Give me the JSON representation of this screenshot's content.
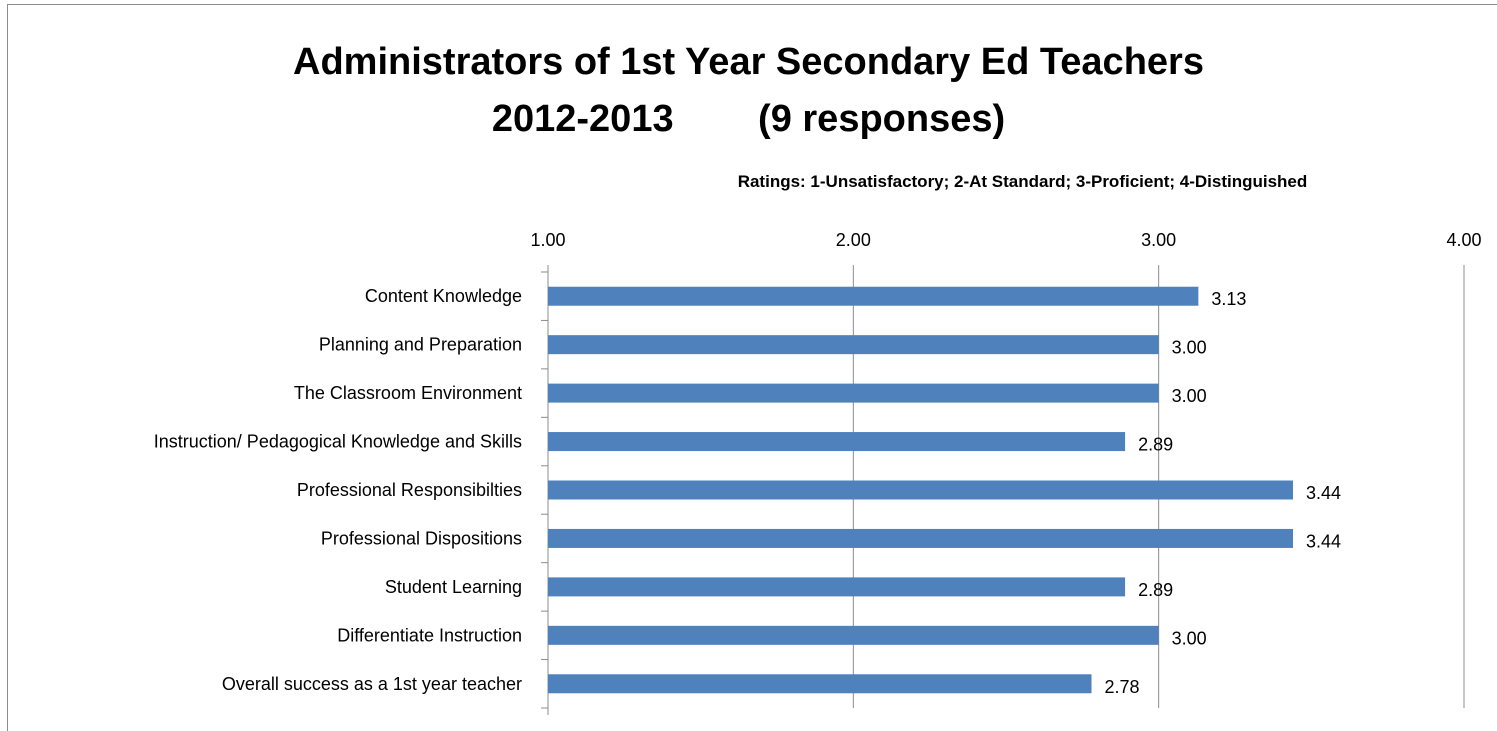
{
  "chart_data": {
    "type": "bar",
    "orientation": "horizontal",
    "title_line1": "Administrators of 1st Year Secondary Ed Teachers",
    "title_line2": "2012-2013        (9 responses)",
    "subtitle": "Ratings:  1-Unsatisfactory; 2-At Standard; 3-Proficient; 4-Distinguished",
    "xlim": [
      1.0,
      4.0
    ],
    "xticks": [
      "1.00",
      "2.00",
      "3.00",
      "4.00"
    ],
    "x_axis_position": "top",
    "grid": true,
    "bar_color": "#4f81bd",
    "categories": [
      "Content Knowledge",
      "Planning and Preparation",
      "The Classroom Environment",
      "Instruction/ Pedagogical Knowledge and Skills",
      "Professional Responsibilties",
      "Professional Dispositions",
      "Student Learning",
      "Differentiate Instruction",
      "Overall success as a 1st year teacher"
    ],
    "values": [
      3.13,
      3.0,
      3.0,
      2.89,
      3.44,
      3.44,
      2.89,
      3.0,
      2.78
    ],
    "value_labels": [
      "3.13",
      "3.00",
      "3.00",
      "2.89",
      "3.44",
      "3.44",
      "2.89",
      "3.00",
      "2.78"
    ]
  }
}
